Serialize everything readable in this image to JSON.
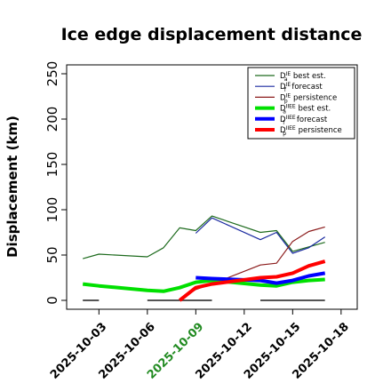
{
  "chart_data": {
    "type": "line",
    "title": "Ice edge displacement distance",
    "ylabel": "Displacement (km)",
    "xlabel": "",
    "ylim": [
      0,
      260
    ],
    "yticks": [
      0,
      50,
      100,
      150,
      200,
      250
    ],
    "xlim": [
      "2025-10-01",
      "2025-10-19"
    ],
    "xticks": [
      "2025-10-03",
      "2025-10-06",
      "2025-10-09",
      "2025-10-12",
      "2025-10-15",
      "2025-10-18"
    ],
    "highlight_tick": "2025-10-09",
    "highlight_color": "#228B22",
    "grid": false,
    "legend_position": "top-right",
    "series": [
      {
        "name": "D^IE_a best est.",
        "legend": {
          "base": "D",
          "sup": "IE",
          "sub": "a",
          "rest": " best est."
        },
        "color": "#1e6b1e",
        "width": 1.2,
        "points": [
          [
            "2025-10-02",
            46
          ],
          [
            "2025-10-03",
            51
          ],
          [
            "2025-10-06",
            48
          ],
          [
            "2025-10-07",
            58
          ],
          [
            "2025-10-08",
            80
          ],
          [
            "2025-10-09",
            77
          ],
          [
            "2025-10-10",
            93
          ],
          [
            "2025-10-13",
            75
          ],
          [
            "2025-10-14",
            77
          ],
          [
            "2025-10-15",
            54
          ],
          [
            "2025-10-16",
            59
          ],
          [
            "2025-10-17",
            64
          ]
        ]
      },
      {
        "name": "D^IE_f forecast",
        "legend": {
          "base": "D",
          "sup": "IE",
          "sub": "f",
          "rest": " forecast"
        },
        "color": "#1a2aa0",
        "width": 1.2,
        "points": [
          [
            "2025-10-09",
            74
          ],
          [
            "2025-10-10",
            91
          ],
          [
            "2025-10-13",
            67
          ],
          [
            "2025-10-14",
            75
          ],
          [
            "2025-10-15",
            52
          ],
          [
            "2025-10-16",
            58
          ],
          [
            "2025-10-17",
            70
          ]
        ]
      },
      {
        "name": "D^IE_p persistence",
        "legend": {
          "base": "D",
          "sup": "IE",
          "sub": "p",
          "rest": " persistence"
        },
        "color": "#8b1a1a",
        "width": 1.2,
        "points": [
          [
            "2025-10-08",
            0
          ],
          [
            "2025-10-09",
            12
          ],
          [
            "2025-10-10",
            18
          ],
          [
            "2025-10-13",
            39
          ],
          [
            "2025-10-14",
            41
          ],
          [
            "2025-10-15",
            65
          ],
          [
            "2025-10-16",
            76
          ],
          [
            "2025-10-17",
            81
          ]
        ]
      },
      {
        "name": "D^IIEE_a best est.",
        "legend": {
          "base": "D",
          "sup": "IIEE",
          "sub": "a",
          "rest": " best est."
        },
        "color": "#00e000",
        "width": 4,
        "points": [
          [
            "2025-10-02",
            18
          ],
          [
            "2025-10-03",
            16
          ],
          [
            "2025-10-06",
            11
          ],
          [
            "2025-10-07",
            10
          ],
          [
            "2025-10-08",
            14
          ],
          [
            "2025-10-09",
            20
          ],
          [
            "2025-10-10",
            22
          ],
          [
            "2025-10-13",
            17
          ],
          [
            "2025-10-14",
            16
          ],
          [
            "2025-10-15",
            20
          ],
          [
            "2025-10-16",
            22
          ],
          [
            "2025-10-17",
            23
          ]
        ]
      },
      {
        "name": "D^IIEE_f forecast",
        "legend": {
          "base": "D",
          "sup": "IIEE",
          "sub": "f",
          "rest": " forecast"
        },
        "color": "#0000ff",
        "width": 4,
        "points": [
          [
            "2025-10-09",
            25
          ],
          [
            "2025-10-10",
            24
          ],
          [
            "2025-10-13",
            22
          ],
          [
            "2025-10-14",
            19
          ],
          [
            "2025-10-15",
            22
          ],
          [
            "2025-10-16",
            27
          ],
          [
            "2025-10-17",
            30
          ]
        ]
      },
      {
        "name": "D^IIEE_p persistence",
        "legend": {
          "base": "D",
          "sup": "IIEE",
          "sub": "p",
          "rest": " persistence"
        },
        "color": "#ff0000",
        "width": 4,
        "points": [
          [
            "2025-10-08",
            0
          ],
          [
            "2025-10-09",
            14
          ],
          [
            "2025-10-10",
            18
          ],
          [
            "2025-10-13",
            25
          ],
          [
            "2025-10-14",
            26
          ],
          [
            "2025-10-15",
            30
          ],
          [
            "2025-10-16",
            38
          ],
          [
            "2025-10-17",
            43
          ]
        ]
      }
    ],
    "baseline_segments": {
      "color": "#555555",
      "y": 0,
      "ranges": [
        [
          "2025-10-02",
          "2025-10-03"
        ],
        [
          "2025-10-06",
          "2025-10-10"
        ],
        [
          "2025-10-13",
          "2025-10-17"
        ]
      ]
    }
  }
}
